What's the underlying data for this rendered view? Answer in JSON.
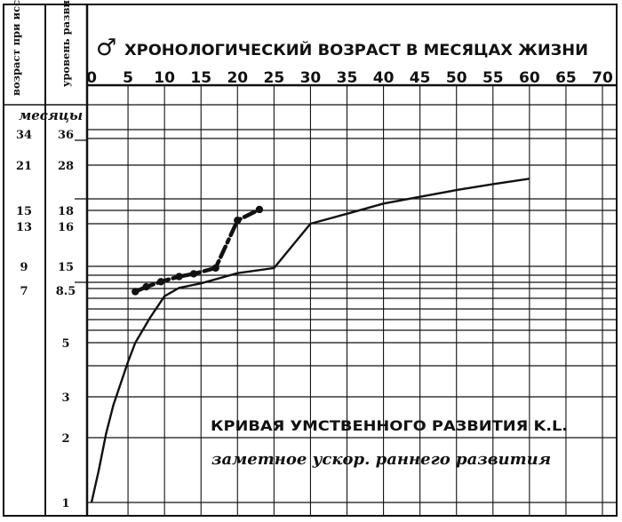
{
  "chart_data": {
    "type": "line",
    "title": "ХРОНОЛОГИЧЕСКИЙ ВОЗРАСТ В МЕСЯЦАХ ЖИЗНИ",
    "sex_symbol": "♂",
    "col1_header": "возраст при исследовании",
    "col1_unit": "месяцы",
    "col2_header": "уровень развития",
    "x_ticks": [
      0,
      5,
      10,
      15,
      20,
      25,
      30,
      35,
      40,
      45,
      50,
      55,
      60,
      65,
      70
    ],
    "xlim": [
      0,
      70
    ],
    "left_labels": [
      {
        "age": "34",
        "level": "36"
      },
      {
        "age": "21",
        "level": "28"
      },
      {
        "age": "15",
        "level": "18"
      },
      {
        "age": "13",
        "level": "16"
      },
      {
        "age": "9",
        "level": "15"
      },
      {
        "age": "7",
        "level": "8.5"
      },
      {
        "age": "",
        "level": "5"
      },
      {
        "age": "",
        "level": "3"
      },
      {
        "age": "",
        "level": "2"
      },
      {
        "age": "",
        "level": "1"
      }
    ],
    "series": [
      {
        "style": "solid",
        "points": [
          [
            0,
            1
          ],
          [
            1,
            1.5
          ],
          [
            2,
            2.1
          ],
          [
            3,
            2.8
          ],
          [
            4,
            3.5
          ],
          [
            5,
            4.3
          ],
          [
            6,
            5
          ],
          [
            7,
            5.8
          ],
          [
            8,
            6.6
          ],
          [
            9,
            7.3
          ],
          [
            10,
            8
          ],
          [
            12,
            8.7
          ],
          [
            15,
            10
          ],
          [
            20,
            13
          ],
          [
            25,
            14.5
          ],
          [
            30,
            16
          ],
          [
            35,
            17.5
          ],
          [
            40,
            19.5
          ],
          [
            45,
            21
          ],
          [
            50,
            22.5
          ],
          [
            55,
            23.8
          ],
          [
            60,
            25
          ]
        ]
      },
      {
        "style": "dash-dot",
        "points": [
          [
            6,
            8.3
          ],
          [
            7.5,
            9
          ],
          [
            9.5,
            10.5
          ],
          [
            12,
            12
          ],
          [
            14,
            12.8
          ],
          [
            17,
            14.5
          ],
          [
            20,
            16.5
          ],
          [
            23,
            18.2
          ]
        ]
      }
    ],
    "legend_title": "КРИВАЯ УМСТВЕННОГО РАЗВИТИЯ K.L.",
    "legend_subtitle": "заметное ускор. раннего развития"
  }
}
